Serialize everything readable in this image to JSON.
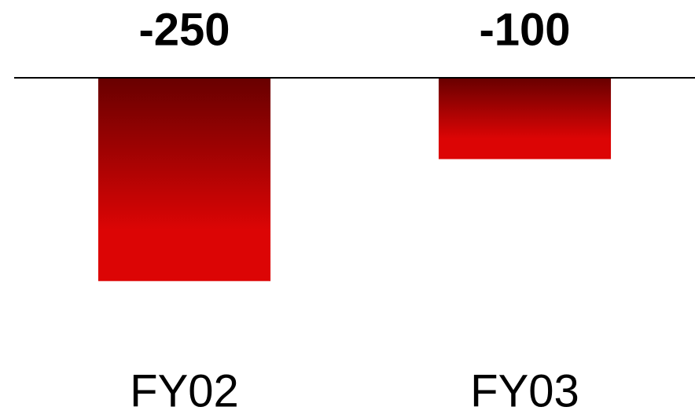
{
  "chart_data": {
    "type": "bar",
    "categories": [
      "FY02",
      "FY03"
    ],
    "values": [
      -250,
      -100
    ],
    "color": "#dc0505",
    "ylim": [
      -400,
      0
    ]
  }
}
